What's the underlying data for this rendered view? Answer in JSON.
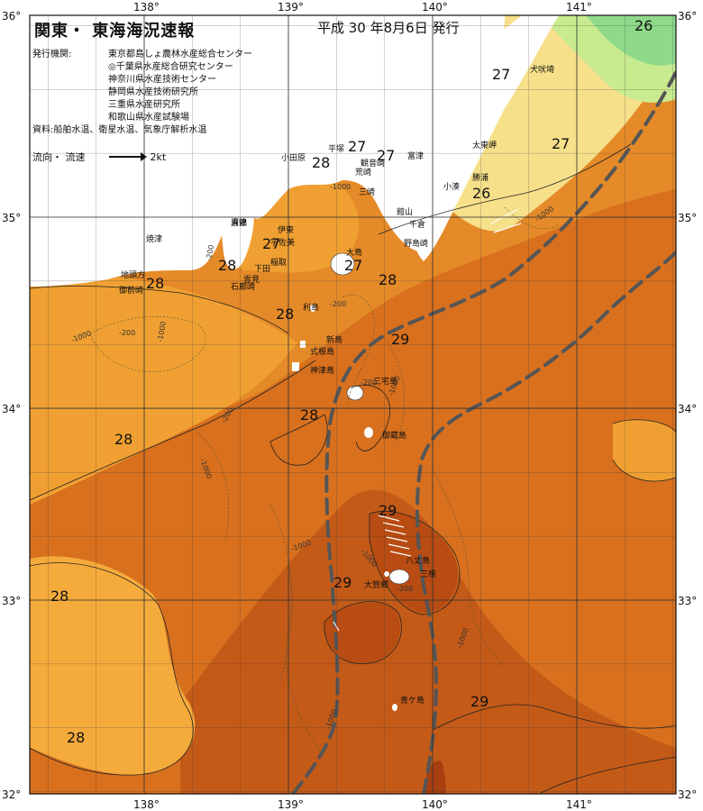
{
  "header": {
    "title": "関東・ 東海海況速報",
    "issue_date": "平成 30 年8月6日 発行"
  },
  "publisher": {
    "label": "発行機関:",
    "agencies": [
      "東京都島しょ農林水産総合センター",
      "◎千葉県水産総合研究センター",
      "神奈川県水産技術センター",
      "静岡県水産技術研究所",
      "三重県水産研究所",
      "和歌山県水産試験場"
    ],
    "source_label": "資料:",
    "source_text": "船舶水温、衛星水温、気象庁解析水温"
  },
  "legend": {
    "label": "流向・ 流速",
    "scale_label": "2kt"
  },
  "axes": {
    "lon_ticks": [
      "138°",
      "139°",
      "140°",
      "141°"
    ],
    "lat_ticks_left": [
      "36°",
      "35°",
      "34°",
      "33°",
      "32°"
    ],
    "lat_ticks_right": [
      "36°",
      "35°",
      "34°",
      "33°",
      "32°"
    ]
  },
  "colors": {
    "land": "#ffffff",
    "t26": "#8fd98a",
    "t26b": "#c8eb8f",
    "t27": "#f7e08a",
    "t27b": "#f2c35e",
    "t28": "#f0a032",
    "t28b": "#e58a28",
    "t29": "#d8701e",
    "t29b": "#c45a18",
    "t30": "#a83f10",
    "current": "#555555",
    "grid": "#333333"
  },
  "temperature_labels": [
    "26",
    "27",
    "27",
    "27",
    "26",
    "27",
    "28",
    "27",
    "28",
    "27",
    "28",
    "28",
    "29",
    "28",
    "28",
    "29",
    "29",
    "28",
    "29",
    "28"
  ],
  "depth_labels": [
    "-1000",
    "-200",
    "-200",
    "-1000",
    "-200",
    "-1000",
    "-200",
    "-1000",
    "-1000",
    "-1000",
    "-1000",
    "-1000",
    "-1000",
    "-1000",
    "-200",
    "-200"
  ],
  "place_names": [
    "犬吠埼",
    "太東岬",
    "勝浦",
    "小湊",
    "富津",
    "平塚",
    "観音崎",
    "荒崎",
    "三崎",
    "館山",
    "千倉",
    "野島崎",
    "小田原",
    "真鶴",
    "伊東",
    "宇佐美",
    "稲取",
    "下田",
    "雲見",
    "石廊崎",
    "大島",
    "沼津",
    "焼津",
    "地頭方",
    "御前崎",
    "利島",
    "新島",
    "式根島",
    "神津島",
    "三宅島",
    "御蔵島",
    "八丈島",
    "三根",
    "大賀郷",
    "青ケ島"
  ]
}
